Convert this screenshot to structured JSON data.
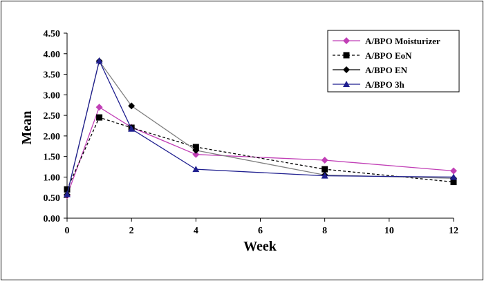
{
  "chart_data": {
    "type": "line",
    "xlabel": "Week",
    "ylabel": "Mean",
    "xlim": [
      0,
      12
    ],
    "ylim": [
      0,
      4.5
    ],
    "xticks": [
      "0",
      "2",
      "4",
      "6",
      "8",
      "10",
      "12"
    ],
    "yticks": [
      "0.00",
      "0.50",
      "1.00",
      "1.50",
      "2.00",
      "2.50",
      "3.00",
      "3.50",
      "4.00",
      "4.50"
    ],
    "grid": false,
    "legend_position": "top-right",
    "series": [
      {
        "name": "A/BPO Moisturizer",
        "color": "#c13fb6",
        "marker": "diamond",
        "dash": "solid",
        "x": [
          0,
          1,
          2,
          4,
          8,
          12
        ],
        "y": [
          0.55,
          2.7,
          2.21,
          1.55,
          1.41,
          1.15
        ]
      },
      {
        "name": "A/BPO EoN",
        "color": "#000000",
        "marker": "square",
        "dash": "dashed",
        "x": [
          0,
          1,
          2,
          4,
          8,
          12
        ],
        "y": [
          0.7,
          2.45,
          2.2,
          1.73,
          1.19,
          0.88
        ]
      },
      {
        "name": "A/BPO EN",
        "color": "#000000",
        "marker": "diamond",
        "dash": "solid",
        "x": [
          0,
          1,
          2,
          4,
          8,
          12
        ],
        "y": [
          0.57,
          3.82,
          2.73,
          1.65,
          1.05,
          0.97
        ]
      },
      {
        "name": "A/BPO 3h",
        "color": "#1f1f8f",
        "marker": "triangle",
        "dash": "solid",
        "x": [
          0,
          1,
          2,
          4,
          8,
          12
        ],
        "y": [
          0.58,
          3.83,
          2.17,
          1.19,
          1.03,
          1.0
        ]
      }
    ]
  }
}
